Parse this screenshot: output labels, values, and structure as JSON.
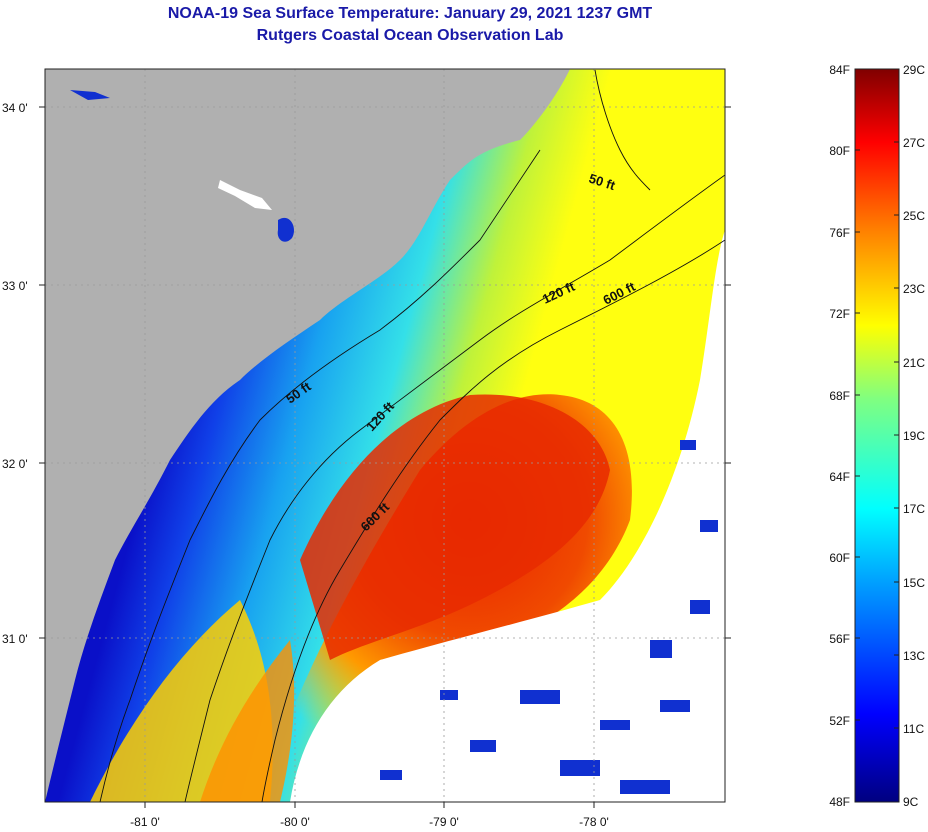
{
  "title": "NOAA-19 Sea Surface Temperature:  January 29, 2021 1237 GMT",
  "subtitle": "Rutgers Coastal Ocean Observation Lab",
  "latitude_labels": [
    "34 0'",
    "33 0'",
    "32 0'",
    "31 0'"
  ],
  "longitude_labels": [
    "-81 0'",
    "-80 0'",
    "-79 0'",
    "-78 0'"
  ],
  "contours": {
    "c50_north": "50 ft",
    "c120_north": "120 ft",
    "c600_north": "600 ft",
    "c50_south": "50 ft",
    "c120_south": "120 ft",
    "c600_south": "600 ft"
  },
  "colorbar": {
    "fahrenheit": [
      "84F",
      "80F",
      "76F",
      "72F",
      "68F",
      "64F",
      "60F",
      "56F",
      "52F",
      "48F"
    ],
    "celsius": [
      "29C",
      "27C",
      "25C",
      "23C",
      "21C",
      "19C",
      "17C",
      "15C",
      "13C",
      "11C",
      "9C"
    ]
  },
  "colors": {
    "title": "#1a1aa8",
    "land": "#b0b0b0",
    "cloud": "#ffffff"
  }
}
